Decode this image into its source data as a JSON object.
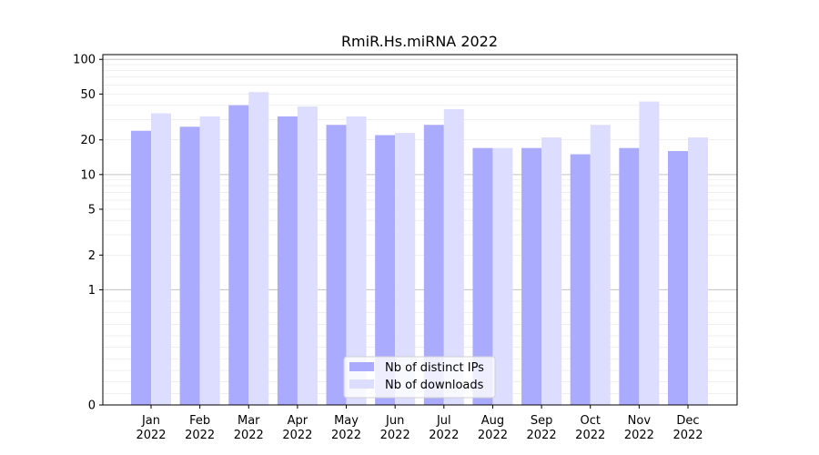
{
  "chart_data": {
    "type": "bar",
    "title": "RmiR.Hs.miRNA 2022",
    "xlabel": "",
    "ylabel": "",
    "y_scale": "symlog",
    "ylim": [
      0,
      110
    ],
    "y_ticks": [
      0,
      1,
      2,
      5,
      10,
      20,
      50,
      100
    ],
    "grid": "major y gridlines (dark) and minor y gridlines (light)",
    "legend_position": "bottom-center",
    "categories": [
      "Jan\n2022",
      "Feb\n2022",
      "Mar\n2022",
      "Apr\n2022",
      "May\n2022",
      "Jun\n2022",
      "Jul\n2022",
      "Aug\n2022",
      "Sep\n2022",
      "Oct\n2022",
      "Nov\n2022",
      "Dec\n2022"
    ],
    "series": [
      {
        "name": "Nb of distinct IPs",
        "color": "#aaaaff",
        "values": [
          24,
          26,
          40,
          32,
          27,
          22,
          27,
          17,
          17,
          15,
          17,
          16
        ]
      },
      {
        "name": "Nb of downloads",
        "color": "#ddddff",
        "values": [
          34,
          32,
          52,
          39,
          32,
          23,
          37,
          17,
          21,
          27,
          43,
          21
        ]
      }
    ]
  }
}
